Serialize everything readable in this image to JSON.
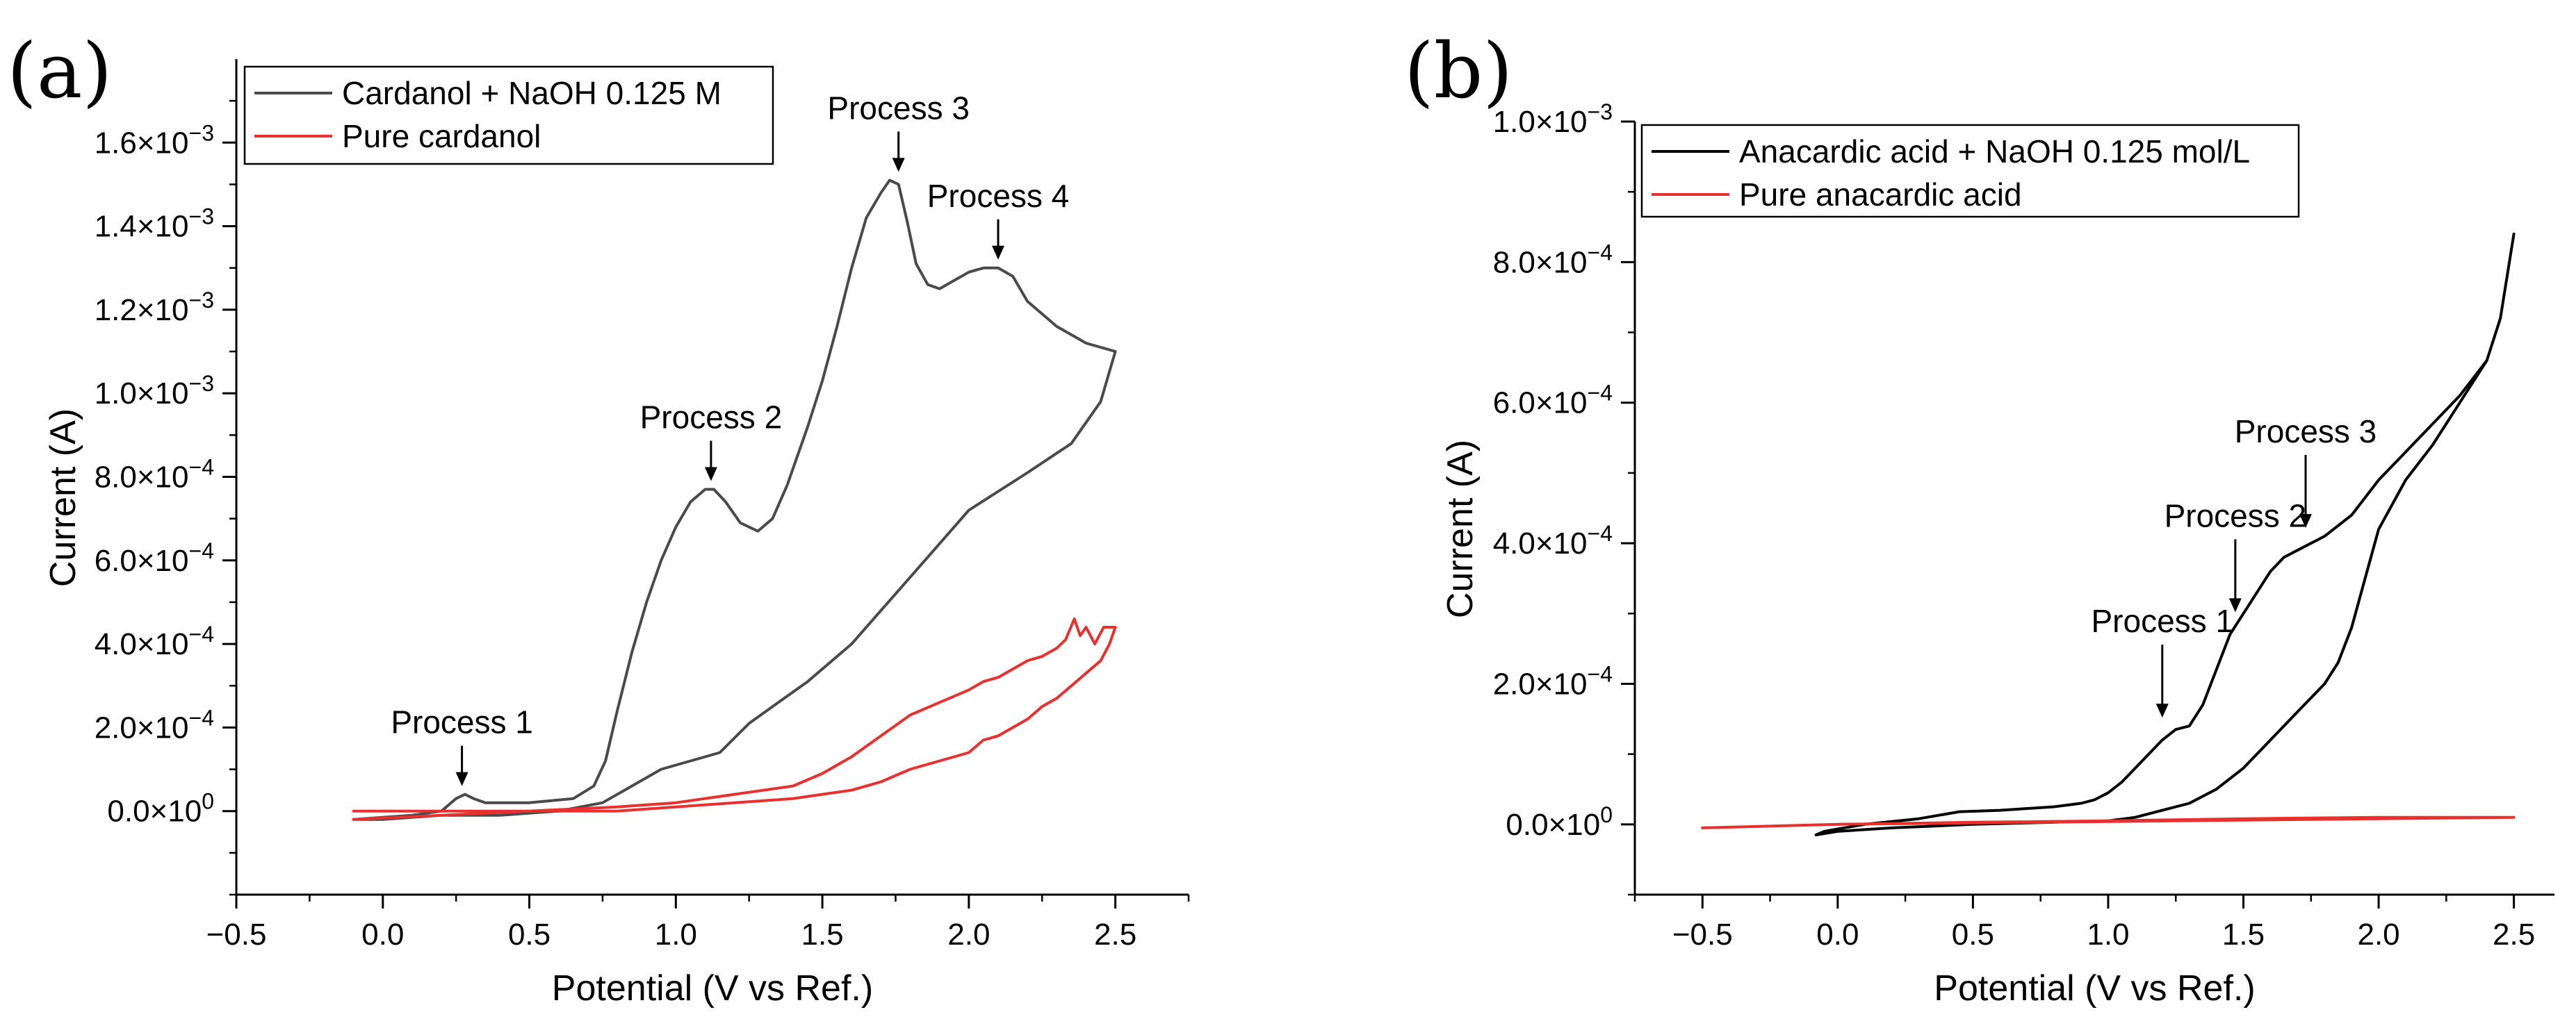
{
  "chart_data": [
    {
      "panel_label": "(a)",
      "type": "line",
      "xlabel": "Potential (V vs Ref.)",
      "ylabel": "Current (A)",
      "xlim": [
        -0.5,
        2.75
      ],
      "ylim": [
        -0.0002,
        0.0018
      ],
      "xticks": [
        -0.5,
        0.0,
        0.5,
        1.0,
        1.5,
        2.0,
        2.5
      ],
      "xtick_labels": [
        "−0.5",
        "0.0",
        "0.5",
        "1.0",
        "1.5",
        "2.0",
        "2.5"
      ],
      "yticks": [
        0.0,
        0.0002,
        0.0004,
        0.0006,
        0.0008,
        0.001,
        0.0012,
        0.0014,
        0.0016
      ],
      "ytick_labels": [
        {
          "mant": "0.0",
          "exp": "0"
        },
        {
          "mant": "2.0",
          "exp": "−4"
        },
        {
          "mant": "4.0",
          "exp": "−4"
        },
        {
          "mant": "6.0",
          "exp": "−4"
        },
        {
          "mant": "8.0",
          "exp": "−4"
        },
        {
          "mant": "1.0",
          "exp": "−3"
        },
        {
          "mant": "1.2",
          "exp": "−3"
        },
        {
          "mant": "1.4",
          "exp": "−3"
        },
        {
          "mant": "1.6",
          "exp": "−3"
        }
      ],
      "legend": {
        "position": "top-left"
      },
      "series": [
        {
          "name": "Cardanol + NaOH 0.125 M",
          "color": "#4a4a4a",
          "x": [
            -0.1,
            0.1,
            0.2,
            0.25,
            0.28,
            0.31,
            0.35,
            0.5,
            0.65,
            0.72,
            0.76,
            0.8,
            0.85,
            0.9,
            0.95,
            1.0,
            1.05,
            1.1,
            1.13,
            1.17,
            1.22,
            1.28,
            1.33,
            1.38,
            1.45,
            1.5,
            1.55,
            1.6,
            1.65,
            1.7,
            1.73,
            1.76,
            1.79,
            1.82,
            1.86,
            1.9,
            1.95,
            2.0,
            2.05,
            2.1,
            2.15,
            2.2,
            2.3,
            2.4,
            2.5,
            2.45,
            2.35,
            2.2,
            2.0,
            1.8,
            1.6,
            1.45,
            1.35,
            1.25,
            1.15,
            1.05,
            0.95,
            0.85,
            0.75,
            0.6,
            0.4,
            0.2,
            0.0,
            -0.1
          ],
          "y": [
            -2e-05,
            -1e-05,
            0.0,
            3e-05,
            4e-05,
            3e-05,
            2e-05,
            2e-05,
            3e-05,
            6e-05,
            0.00012,
            0.00024,
            0.00038,
            0.0005,
            0.0006,
            0.00068,
            0.00074,
            0.00077,
            0.00077,
            0.00074,
            0.00069,
            0.00067,
            0.0007,
            0.00078,
            0.00092,
            0.00103,
            0.00116,
            0.0013,
            0.00142,
            0.00148,
            0.00151,
            0.0015,
            0.00141,
            0.00131,
            0.00126,
            0.00125,
            0.00127,
            0.00129,
            0.0013,
            0.0013,
            0.00128,
            0.00122,
            0.00116,
            0.00112,
            0.0011,
            0.00098,
            0.00088,
            0.00081,
            0.00072,
            0.00056,
            0.0004,
            0.00031,
            0.00026,
            0.00021,
            0.00014,
            0.00012,
            0.0001,
            6e-05,
            2e-05,
            0.0,
            -1e-05,
            -1e-05,
            -2e-05,
            -2e-05
          ]
        },
        {
          "name": "Pure cardanol",
          "color": "#e8302f",
          "x": [
            -0.1,
            0.2,
            0.5,
            0.8,
            1.0,
            1.2,
            1.4,
            1.5,
            1.6,
            1.7,
            1.8,
            1.9,
            2.0,
            2.05,
            2.1,
            2.15,
            2.2,
            2.25,
            2.3,
            2.33,
            2.36,
            2.38,
            2.4,
            2.43,
            2.46,
            2.5,
            2.48,
            2.45,
            2.4,
            2.35,
            2.3,
            2.25,
            2.2,
            2.15,
            2.1,
            2.05,
            2.0,
            1.9,
            1.8,
            1.7,
            1.6,
            1.5,
            1.4,
            1.2,
            1.0,
            0.8,
            0.5,
            0.2,
            -0.1
          ],
          "y": [
            0.0,
            0.0,
            0.0,
            1e-05,
            2e-05,
            4e-05,
            6e-05,
            9e-05,
            0.00013,
            0.00018,
            0.00023,
            0.00026,
            0.00029,
            0.00031,
            0.00032,
            0.00034,
            0.00036,
            0.00037,
            0.00039,
            0.00041,
            0.00046,
            0.00042,
            0.00044,
            0.0004,
            0.00044,
            0.00044,
            0.0004,
            0.00036,
            0.00033,
            0.0003,
            0.00027,
            0.00025,
            0.00022,
            0.0002,
            0.00018,
            0.00017,
            0.00014,
            0.00012,
            0.0001,
            7e-05,
            5e-05,
            4e-05,
            3e-05,
            2e-05,
            1e-05,
            0.0,
            0.0,
            -1e-05,
            -2e-05
          ]
        }
      ],
      "annotations": [
        {
          "text": "Process 1",
          "x": 0.27,
          "y": 4e-05
        },
        {
          "text": "Process 2",
          "x": 1.12,
          "y": 0.00077
        },
        {
          "text": "Process 3",
          "x": 1.76,
          "y": 0.00151
        },
        {
          "text": "Process 4",
          "x": 2.1,
          "y": 0.0013
        }
      ]
    },
    {
      "panel_label": "(b)",
      "type": "line",
      "xlabel": "Potential (V vs Ref.)",
      "ylabel": "Current (A)",
      "xlim": [
        -0.75,
        2.65
      ],
      "ylim": [
        -0.0001,
        0.001
      ],
      "xticks": [
        -0.5,
        0.0,
        0.5,
        1.0,
        1.5,
        2.0,
        2.5
      ],
      "xtick_labels": [
        "−0.5",
        "0.0",
        "0.5",
        "1.0",
        "1.5",
        "2.0",
        "2.5"
      ],
      "yticks": [
        0.0,
        0.0002,
        0.0004,
        0.0006,
        0.0008,
        0.001
      ],
      "ytick_labels": [
        {
          "mant": "0.0",
          "exp": "0"
        },
        {
          "mant": "2.0",
          "exp": "−4"
        },
        {
          "mant": "4.0",
          "exp": "−4"
        },
        {
          "mant": "6.0",
          "exp": "−4"
        },
        {
          "mant": "8.0",
          "exp": "−4"
        },
        {
          "mant": "1.0",
          "exp": "−3"
        }
      ],
      "legend": {
        "position": "top-left"
      },
      "series": [
        {
          "name": "Anacardic acid + NaOH 0.125 mol/L",
          "color": "#000000",
          "x": [
            -0.08,
            -0.05,
            0.1,
            0.3,
            0.45,
            0.6,
            0.8,
            0.9,
            0.95,
            1.0,
            1.05,
            1.1,
            1.15,
            1.2,
            1.25,
            1.3,
            1.35,
            1.4,
            1.45,
            1.5,
            1.55,
            1.6,
            1.65,
            1.7,
            1.8,
            1.9,
            2.0,
            2.1,
            2.2,
            2.3,
            2.4,
            2.45,
            2.5,
            2.45,
            2.4,
            2.3,
            2.2,
            2.1,
            2.0,
            1.95,
            1.9,
            1.85,
            1.8,
            1.7,
            1.6,
            1.5,
            1.4,
            1.3,
            1.2,
            1.1,
            1.0,
            0.8,
            0.5,
            0.2,
            0.0,
            -0.08
          ],
          "y": [
            -1.5e-05,
            -1e-05,
            0.0,
            8e-06,
            1.8e-05,
            2e-05,
            2.5e-05,
            3e-05,
            3.5e-05,
            4.5e-05,
            6e-05,
            8e-05,
            0.0001,
            0.00012,
            0.000135,
            0.00014,
            0.00017,
            0.00022,
            0.00027,
            0.0003,
            0.00033,
            0.00036,
            0.00038,
            0.00039,
            0.00041,
            0.00044,
            0.00049,
            0.00053,
            0.00057,
            0.00061,
            0.00066,
            0.00072,
            0.00084,
            0.00072,
            0.00066,
            0.0006,
            0.00054,
            0.00049,
            0.00042,
            0.00035,
            0.00028,
            0.00023,
            0.0002,
            0.00016,
            0.00012,
            8e-05,
            5e-05,
            3e-05,
            2e-05,
            1e-05,
            5e-06,
            3e-06,
            0.0,
            -5e-06,
            -1e-05,
            -1.5e-05
          ]
        },
        {
          "name": "Pure anacardic acid",
          "color": "#e8302f",
          "x": [
            -0.5,
            0.0,
            0.5,
            1.0,
            1.5,
            2.0,
            2.5,
            2.0,
            1.5,
            1.0,
            0.5,
            0.0,
            -0.5
          ],
          "y": [
            -5e-06,
            0.0,
            3e-06,
            5e-06,
            8e-06,
            1e-05,
            1e-05,
            8e-06,
            6e-06,
            4e-06,
            2e-06,
            0.0,
            -5e-06
          ]
        }
      ],
      "annotations": [
        {
          "text": "Process 1",
          "x": 1.2,
          "y": 0.00014
        },
        {
          "text": "Process 2",
          "x": 1.47,
          "y": 0.00029
        },
        {
          "text": "Process 3",
          "x": 1.73,
          "y": 0.00041
        }
      ]
    }
  ]
}
